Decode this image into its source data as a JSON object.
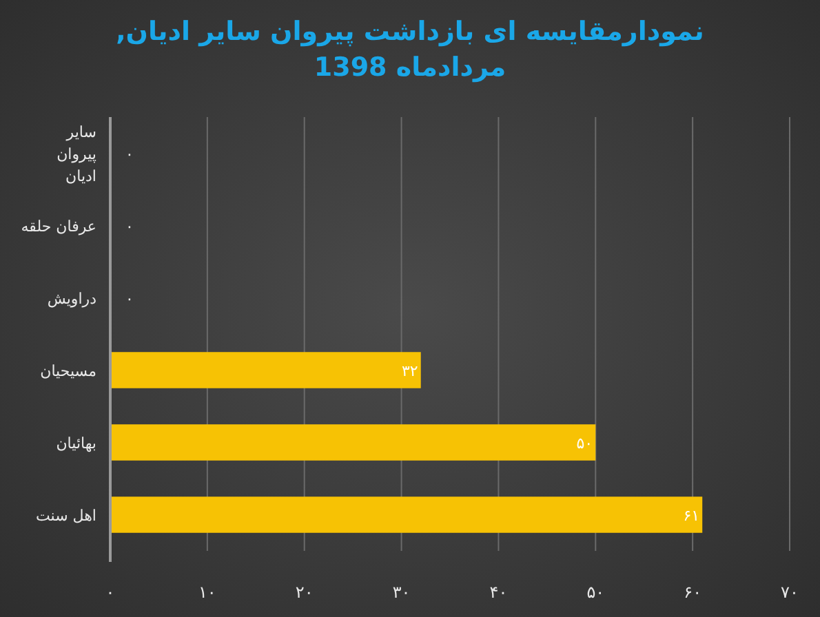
{
  "chart_data": {
    "type": "bar",
    "orientation": "horizontal",
    "title": "نمودارمقایسه ای بازداشت پیروان سایر ادیان, مردادماه 1398",
    "categories": [
      "سایر پیروان ادیان",
      "عرفان حلقه",
      "دراویش",
      "مسیحیان",
      "بهائیان",
      "اهل سنت"
    ],
    "values": [
      0,
      0,
      0,
      32,
      50,
      61
    ],
    "value_labels": [
      "۰",
      "۰",
      "۰",
      "۳۲",
      "۵۰",
      "۶۱"
    ],
    "color": "#f7c204",
    "xlim": [
      0,
      70
    ],
    "xticks": [
      {
        "value": 0,
        "label": "۰"
      },
      {
        "value": 10,
        "label": "۱۰"
      },
      {
        "value": 20,
        "label": "۲۰"
      },
      {
        "value": 30,
        "label": "۳۰"
      },
      {
        "value": 40,
        "label": "۴۰"
      },
      {
        "value": 50,
        "label": "۵۰"
      },
      {
        "value": 60,
        "label": "۶۰"
      },
      {
        "value": 70,
        "label": "۷۰"
      }
    ],
    "grid": "x"
  }
}
